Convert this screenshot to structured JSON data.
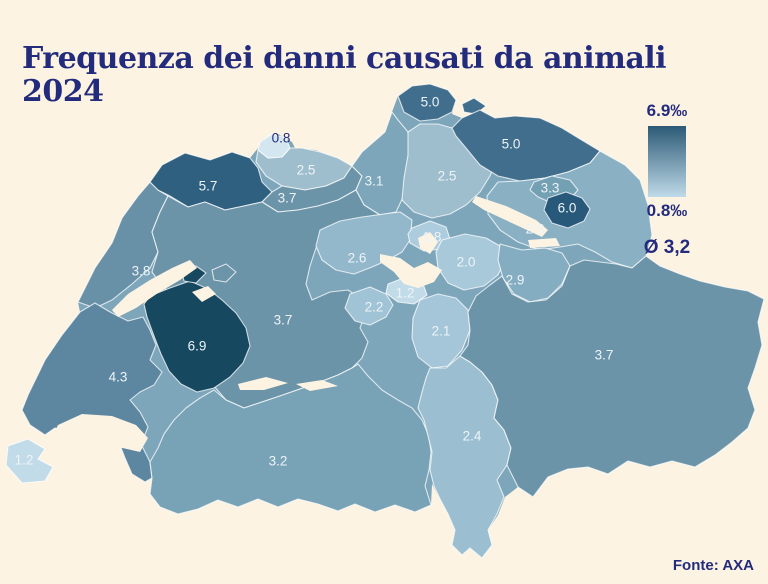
{
  "title": "Frequenza dei danni causati da animali 2024",
  "source": "Fonte: AXA",
  "legend": {
    "max_label": "6.9‰",
    "min_label": "0.8‰",
    "average_label": "Ø 3,2",
    "max_color": "#2c5a76",
    "min_color": "#bfdae8"
  },
  "colors": {
    "background": "#fdf3e2",
    "title_text": "#232b7d",
    "map_base": "#7ea6bb",
    "border": "#ffffff",
    "label_text": "#edf4f8"
  },
  "map": {
    "unit": "‰",
    "regions": [
      {
        "id": "NE",
        "name": "Neuchatel",
        "value": "3.8",
        "color": "#6891a7"
      },
      {
        "id": "JU",
        "name": "Jura",
        "value": "5.7",
        "color": "#2f6080"
      },
      {
        "id": "BL",
        "name": "Basel-Landschaft",
        "value": "2.5",
        "color": "#9fbecd"
      },
      {
        "id": "BS",
        "name": "Basel-Stadt",
        "value": "0.8",
        "color": "#d4e7f0",
        "label_color": "#232b7d"
      },
      {
        "id": "SO",
        "name": "Solothurn",
        "value": "3.7",
        "color": "#6c94a9"
      },
      {
        "id": "AG",
        "name": "Aargau",
        "value": "3.1",
        "color": "#7da6ba"
      },
      {
        "id": "ZH",
        "name": "Zurigo",
        "value": "2.5",
        "color": "#9fbecd"
      },
      {
        "id": "SH",
        "name": "Sciaffusa",
        "value": "5.0",
        "color": "#406e8c"
      },
      {
        "id": "TG",
        "name": "Turgovia",
        "value": "5.0",
        "color": "#406e8c"
      },
      {
        "id": "SG",
        "name": "San Gallo",
        "value": "2.8",
        "color": "#8ab0c4"
      },
      {
        "id": "AR",
        "name": "Appenzello Esterno",
        "value": "3.3",
        "color": "#74a0b4"
      },
      {
        "id": "AI",
        "name": "Appenzello Interno",
        "value": "6.0",
        "color": "#28597a"
      },
      {
        "id": "BE",
        "name": "Berna",
        "value": "3.7",
        "color": "#6c94a9"
      },
      {
        "id": "LU",
        "name": "Lucerna",
        "value": "2.6",
        "color": "#93b8cb"
      },
      {
        "id": "ZG",
        "name": "Zugo",
        "value": "1.8",
        "color": "#adcdde"
      },
      {
        "id": "SZ",
        "name": "Svitto",
        "value": "2.0",
        "color": "#a7c9da"
      },
      {
        "id": "GL",
        "name": "Glarona",
        "value": "2.9",
        "color": "#85adc1"
      },
      {
        "id": "NW",
        "name": "Nidvaldo",
        "value": "1.2",
        "color": "#c2dbe8"
      },
      {
        "id": "OW",
        "name": "Obvaldo",
        "value": "2.2",
        "color": "#a0c3d5"
      },
      {
        "id": "UR",
        "name": "Uri",
        "value": "2.1",
        "color": "#a4c6d8"
      },
      {
        "id": "FR",
        "name": "Friburgo",
        "value": "6.9",
        "color": "#16485f"
      },
      {
        "id": "VD",
        "name": "Vaud",
        "value": "4.3",
        "color": "#5d87a0"
      },
      {
        "id": "GE",
        "name": "Ginevra",
        "value": "1.2",
        "color": "#c2dbe8"
      },
      {
        "id": "VS",
        "name": "Vallese",
        "value": "3.2",
        "color": "#78a2b6"
      },
      {
        "id": "TI",
        "name": "Ticino",
        "value": "2.4",
        "color": "#9bbfd1"
      },
      {
        "id": "GR",
        "name": "Grigioni",
        "value": "3.7",
        "color": "#6c94a9"
      }
    ]
  },
  "chart_data": {
    "type": "heatmap",
    "subtype": "choropleth-map",
    "title": "Frequenza dei danni causati da animali 2024",
    "categories": [
      "NE",
      "JU",
      "BL",
      "BS",
      "SO",
      "AG",
      "ZH",
      "SH",
      "TG",
      "SG",
      "AR",
      "AI",
      "BE",
      "LU",
      "ZG",
      "SZ",
      "GL",
      "NW",
      "OW",
      "UR",
      "FR",
      "VD",
      "GE",
      "VS",
      "TI",
      "GR"
    ],
    "values": [
      3.8,
      5.7,
      2.5,
      0.8,
      3.7,
      3.1,
      2.5,
      5.0,
      5.0,
      2.8,
      3.3,
      6.0,
      3.7,
      2.6,
      1.8,
      2.0,
      2.9,
      1.2,
      2.2,
      2.1,
      6.9,
      4.3,
      1.2,
      3.2,
      2.4,
      3.7
    ],
    "value_range": [
      0.8,
      6.9
    ],
    "average": 3.2,
    "unit": "‰",
    "legend_position": "right",
    "source": "Fonte: AXA"
  }
}
